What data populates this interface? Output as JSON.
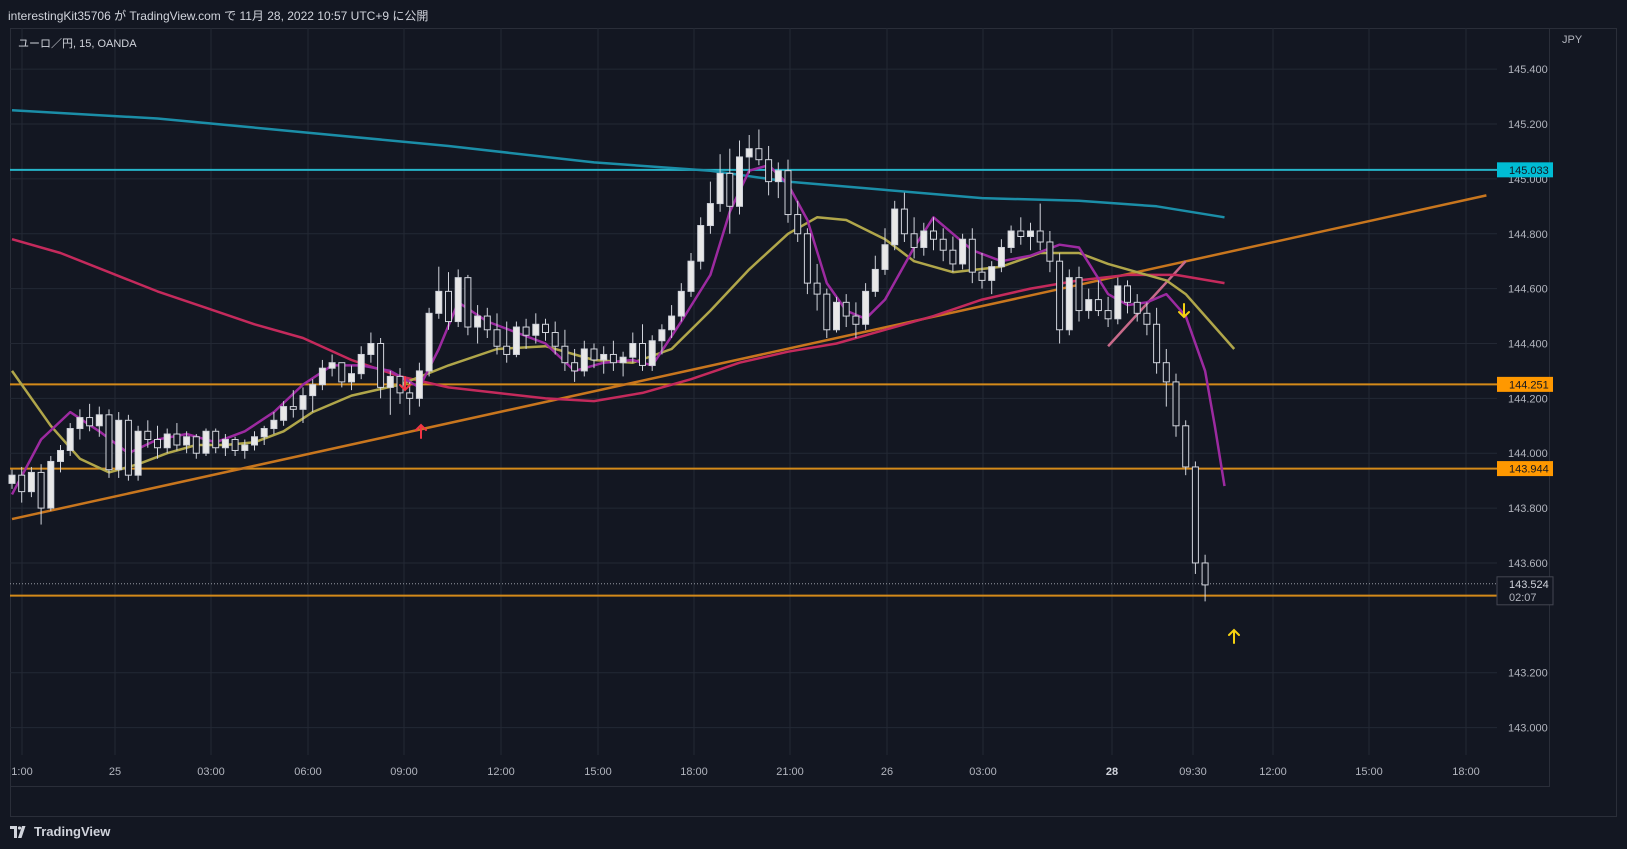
{
  "header": {
    "publish_line": "interestingKit35706 が TradingView.com で 11月 28, 2022 10:57 UTC+9 に公開",
    "symbol_line": "ユーロ／円, 15, OANDA",
    "currency": "JPY"
  },
  "footer": {
    "brand": "TradingView"
  },
  "colors": {
    "background": "#131722",
    "grid": "#232834",
    "up_candle": "#e8e8e8",
    "down_candle": "#e8e8e8",
    "hline": "#d48a1a",
    "trendline": "#c8761e",
    "hline_cyan": "#26b4c8",
    "ma_teal": "#1b8ea8",
    "ma_crimson": "#c42a5c",
    "ma_olive": "#b0a64a",
    "ma_purple": "#9c2aa0",
    "arrow_red": "#f23645",
    "arrow_yellow": "#f5d211",
    "label_orange": "#ff9800",
    "label_cyan": "#00bcd4"
  },
  "chart_data": {
    "type": "candlestick",
    "ylim": [
      142.9,
      145.55
    ],
    "y_ticks": [
      "145.400",
      "145.200",
      "145.000",
      "144.800",
      "144.600",
      "144.400",
      "144.200",
      "144.000",
      "143.800",
      "143.600",
      "143.200",
      "143.000"
    ],
    "x_ticks": [
      "1:00",
      "25",
      "03:00",
      "06:00",
      "09:00",
      "12:00",
      "15:00",
      "18:00",
      "21:00",
      "26",
      "03:00",
      "28",
      "09:30",
      "12:00",
      "15:00",
      "18:00"
    ],
    "bold_x_ticks": [
      "28"
    ],
    "horizontal_levels": [
      {
        "value": 145.033,
        "label": "145.033",
        "style": "cyan"
      },
      {
        "value": 144.251,
        "label": "144.251",
        "style": "orange"
      },
      {
        "value": 143.944,
        "label": "143.944",
        "style": "orange"
      },
      {
        "value": 143.481,
        "label": "143.481",
        "style": "orange"
      }
    ],
    "last_price": {
      "value": 143.524,
      "label": "143.524",
      "countdown": "02:07"
    },
    "trendlines": [
      {
        "from": [
          0,
          143.76
        ],
        "to": [
          152,
          144.94
        ]
      },
      {
        "from": [
          113,
          144.39
        ],
        "to": [
          121,
          144.7
        ]
      }
    ],
    "moving_averages": [
      {
        "color": "ma_teal",
        "points": [
          [
            0,
            145.25
          ],
          [
            15,
            145.22
          ],
          [
            30,
            145.17
          ],
          [
            45,
            145.12
          ],
          [
            60,
            145.06
          ],
          [
            72,
            145.03
          ],
          [
            80,
            144.99
          ],
          [
            90,
            144.96
          ],
          [
            100,
            144.93
          ],
          [
            110,
            144.92
          ],
          [
            118,
            144.9
          ],
          [
            125,
            144.86
          ]
        ]
      },
      {
        "color": "ma_crimson",
        "points": [
          [
            0,
            144.78
          ],
          [
            5,
            144.73
          ],
          [
            10,
            144.66
          ],
          [
            15,
            144.59
          ],
          [
            20,
            144.53
          ],
          [
            25,
            144.47
          ],
          [
            30,
            144.42
          ],
          [
            35,
            144.34
          ],
          [
            40,
            144.28
          ],
          [
            45,
            144.24
          ],
          [
            50,
            144.22
          ],
          [
            55,
            144.2
          ],
          [
            60,
            144.19
          ],
          [
            65,
            144.22
          ],
          [
            70,
            144.27
          ],
          [
            75,
            144.33
          ],
          [
            80,
            144.37
          ],
          [
            85,
            144.4
          ],
          [
            90,
            144.45
          ],
          [
            95,
            144.5
          ],
          [
            100,
            144.56
          ],
          [
            105,
            144.6
          ],
          [
            110,
            144.63
          ],
          [
            115,
            144.65
          ],
          [
            120,
            144.65
          ],
          [
            125,
            144.62
          ]
        ]
      },
      {
        "color": "ma_olive",
        "points": [
          [
            0,
            144.3
          ],
          [
            4,
            144.1
          ],
          [
            7,
            143.98
          ],
          [
            10,
            143.93
          ],
          [
            13,
            143.96
          ],
          [
            16,
            144.0
          ],
          [
            19,
            144.03
          ],
          [
            22,
            144.03
          ],
          [
            25,
            144.04
          ],
          [
            28,
            144.08
          ],
          [
            31,
            144.15
          ],
          [
            35,
            144.21
          ],
          [
            40,
            144.25
          ],
          [
            45,
            144.32
          ],
          [
            50,
            144.38
          ],
          [
            55,
            144.39
          ],
          [
            60,
            144.34
          ],
          [
            64,
            144.33
          ],
          [
            68,
            144.38
          ],
          [
            72,
            144.52
          ],
          [
            76,
            144.67
          ],
          [
            80,
            144.8
          ],
          [
            83,
            144.86
          ],
          [
            86,
            144.85
          ],
          [
            90,
            144.78
          ],
          [
            93,
            144.7
          ],
          [
            97,
            144.66
          ],
          [
            102,
            144.68
          ],
          [
            106,
            144.73
          ],
          [
            110,
            144.73
          ],
          [
            113,
            144.69
          ],
          [
            116,
            144.66
          ],
          [
            119,
            144.63
          ],
          [
            121,
            144.58
          ],
          [
            124,
            144.46
          ],
          [
            126,
            144.38
          ]
        ]
      },
      {
        "color": "ma_purple",
        "points": [
          [
            0,
            143.85
          ],
          [
            3,
            144.05
          ],
          [
            6,
            144.15
          ],
          [
            9,
            144.08
          ],
          [
            12,
            144.0
          ],
          [
            15,
            144.05
          ],
          [
            18,
            144.07
          ],
          [
            21,
            144.04
          ],
          [
            24,
            144.08
          ],
          [
            27,
            144.15
          ],
          [
            30,
            144.25
          ],
          [
            33,
            144.32
          ],
          [
            36,
            144.32
          ],
          [
            39,
            144.3
          ],
          [
            42,
            144.24
          ],
          [
            44,
            144.38
          ],
          [
            46,
            144.55
          ],
          [
            49,
            144.48
          ],
          [
            52,
            144.44
          ],
          [
            55,
            144.4
          ],
          [
            58,
            144.3
          ],
          [
            61,
            144.33
          ],
          [
            64,
            144.34
          ],
          [
            66,
            144.32
          ],
          [
            69,
            144.48
          ],
          [
            72,
            144.65
          ],
          [
            74,
            144.88
          ],
          [
            76,
            145.03
          ],
          [
            78,
            145.05
          ],
          [
            80,
            144.98
          ],
          [
            82,
            144.85
          ],
          [
            84,
            144.62
          ],
          [
            86,
            144.52
          ],
          [
            88,
            144.49
          ],
          [
            90,
            144.56
          ],
          [
            93,
            144.75
          ],
          [
            95,
            144.86
          ],
          [
            97,
            144.8
          ],
          [
            99,
            144.74
          ],
          [
            102,
            144.7
          ],
          [
            105,
            144.72
          ],
          [
            108,
            144.76
          ],
          [
            110,
            144.75
          ],
          [
            113,
            144.58
          ],
          [
            115,
            144.54
          ],
          [
            117,
            144.55
          ],
          [
            119,
            144.58
          ],
          [
            121,
            144.5
          ],
          [
            123,
            144.3
          ],
          [
            124,
            144.1
          ],
          [
            125,
            143.88
          ]
        ]
      }
    ],
    "candles": [
      [
        143.89,
        143.94,
        143.87,
        143.92
      ],
      [
        143.92,
        143.95,
        143.82,
        143.86
      ],
      [
        143.86,
        143.95,
        143.84,
        143.93
      ],
      [
        143.93,
        143.96,
        143.74,
        143.8
      ],
      [
        143.8,
        143.99,
        143.79,
        143.97
      ],
      [
        143.97,
        144.03,
        143.93,
        144.01
      ],
      [
        144.01,
        144.11,
        143.99,
        144.09
      ],
      [
        144.09,
        144.16,
        144.05,
        144.13
      ],
      [
        144.13,
        144.18,
        144.08,
        144.1
      ],
      [
        144.1,
        144.17,
        144.06,
        144.14
      ],
      [
        144.14,
        144.16,
        143.91,
        143.94
      ],
      [
        143.94,
        144.15,
        143.91,
        144.12
      ],
      [
        144.12,
        144.14,
        143.9,
        143.92
      ],
      [
        143.92,
        144.1,
        143.9,
        144.08
      ],
      [
        144.08,
        144.12,
        144.02,
        144.05
      ],
      [
        144.05,
        144.1,
        143.98,
        144.02
      ],
      [
        144.02,
        144.09,
        144.0,
        144.07
      ],
      [
        144.07,
        144.11,
        144.01,
        144.03
      ],
      [
        144.03,
        144.08,
        144.0,
        144.06
      ],
      [
        144.06,
        144.07,
        143.98,
        144.0
      ],
      [
        144.0,
        144.09,
        143.99,
        144.08
      ],
      [
        144.08,
        144.09,
        144.0,
        144.02
      ],
      [
        144.02,
        144.07,
        143.99,
        144.05
      ],
      [
        144.05,
        144.06,
        143.99,
        144.01
      ],
      [
        144.01,
        144.05,
        143.98,
        144.03
      ],
      [
        144.03,
        144.08,
        144.01,
        144.06
      ],
      [
        144.06,
        144.1,
        144.03,
        144.09
      ],
      [
        144.09,
        144.15,
        144.07,
        144.12
      ],
      [
        144.12,
        144.19,
        144.1,
        144.17
      ],
      [
        144.17,
        144.23,
        144.13,
        144.16
      ],
      [
        144.16,
        144.24,
        144.11,
        144.21
      ],
      [
        144.21,
        144.27,
        144.15,
        144.25
      ],
      [
        144.25,
        144.34,
        144.23,
        144.31
      ],
      [
        144.31,
        144.36,
        144.28,
        144.33
      ],
      [
        144.33,
        144.33,
        144.24,
        144.26
      ],
      [
        144.26,
        144.32,
        144.23,
        144.29
      ],
      [
        144.29,
        144.39,
        144.27,
        144.36
      ],
      [
        144.36,
        144.44,
        144.33,
        144.4
      ],
      [
        144.4,
        144.42,
        144.2,
        144.24
      ],
      [
        144.24,
        144.3,
        144.14,
        144.28
      ],
      [
        144.28,
        144.31,
        144.18,
        144.22
      ],
      [
        144.22,
        144.26,
        144.14,
        144.2
      ],
      [
        144.2,
        144.33,
        144.17,
        144.3
      ],
      [
        144.3,
        144.53,
        144.28,
        144.51
      ],
      [
        144.51,
        144.68,
        144.49,
        144.59
      ],
      [
        144.59,
        144.66,
        144.45,
        144.48
      ],
      [
        144.48,
        144.67,
        144.46,
        144.64
      ],
      [
        144.64,
        144.65,
        144.43,
        144.46
      ],
      [
        144.46,
        144.54,
        144.4,
        144.5
      ],
      [
        144.5,
        144.53,
        144.42,
        144.45
      ],
      [
        144.45,
        144.51,
        144.36,
        144.39
      ],
      [
        144.39,
        144.48,
        144.33,
        144.36
      ],
      [
        144.36,
        144.48,
        144.35,
        144.46
      ],
      [
        144.46,
        144.49,
        144.38,
        144.43
      ],
      [
        144.43,
        144.51,
        144.4,
        144.47
      ],
      [
        144.47,
        144.49,
        144.41,
        144.44
      ],
      [
        144.44,
        144.48,
        144.36,
        144.39
      ],
      [
        144.39,
        144.45,
        144.3,
        144.33
      ],
      [
        144.33,
        144.38,
        144.26,
        144.3
      ],
      [
        144.3,
        144.41,
        144.28,
        144.38
      ],
      [
        144.38,
        144.4,
        144.31,
        144.34
      ],
      [
        144.34,
        144.39,
        144.29,
        144.36
      ],
      [
        144.36,
        144.41,
        144.3,
        144.33
      ],
      [
        144.33,
        144.37,
        144.28,
        144.35
      ],
      [
        144.35,
        144.44,
        144.33,
        144.4
      ],
      [
        144.4,
        144.47,
        144.3,
        144.32
      ],
      [
        144.32,
        144.43,
        144.3,
        144.41
      ],
      [
        144.41,
        144.47,
        144.36,
        144.45
      ],
      [
        144.45,
        144.54,
        144.42,
        144.5
      ],
      [
        144.5,
        144.62,
        144.48,
        144.59
      ],
      [
        144.59,
        144.73,
        144.57,
        144.7
      ],
      [
        144.7,
        144.86,
        144.67,
        144.83
      ],
      [
        144.83,
        144.99,
        144.8,
        144.91
      ],
      [
        144.91,
        145.09,
        144.88,
        145.02
      ],
      [
        145.02,
        145.11,
        144.8,
        144.9
      ],
      [
        144.9,
        145.14,
        144.87,
        145.08
      ],
      [
        145.08,
        145.16,
        145.02,
        145.11
      ],
      [
        145.11,
        145.18,
        145.05,
        145.07
      ],
      [
        145.07,
        145.12,
        144.94,
        144.99
      ],
      [
        144.99,
        145.06,
        144.93,
        145.03
      ],
      [
        145.03,
        145.07,
        144.84,
        144.87
      ],
      [
        144.87,
        144.92,
        144.77,
        144.8
      ],
      [
        144.8,
        144.82,
        144.58,
        144.62
      ],
      [
        144.62,
        144.69,
        144.52,
        144.58
      ],
      [
        144.58,
        144.6,
        144.42,
        144.45
      ],
      [
        144.45,
        144.57,
        144.44,
        144.55
      ],
      [
        144.55,
        144.58,
        144.46,
        144.5
      ],
      [
        144.5,
        144.55,
        144.42,
        144.47
      ],
      [
        144.47,
        144.62,
        144.45,
        144.59
      ],
      [
        144.59,
        144.72,
        144.57,
        144.67
      ],
      [
        144.67,
        144.82,
        144.65,
        144.76
      ],
      [
        144.76,
        144.92,
        144.74,
        144.89
      ],
      [
        144.89,
        144.95,
        144.77,
        144.8
      ],
      [
        144.8,
        144.86,
        144.71,
        144.75
      ],
      [
        144.75,
        144.84,
        144.72,
        144.81
      ],
      [
        144.81,
        144.86,
        144.74,
        144.78
      ],
      [
        144.78,
        144.82,
        144.7,
        144.74
      ],
      [
        144.74,
        144.79,
        144.66,
        144.69
      ],
      [
        144.69,
        144.8,
        144.67,
        144.78
      ],
      [
        144.78,
        144.82,
        144.62,
        144.66
      ],
      [
        144.66,
        144.73,
        144.6,
        144.63
      ],
      [
        144.63,
        144.7,
        144.58,
        144.68
      ],
      [
        144.68,
        144.78,
        144.66,
        144.75
      ],
      [
        144.75,
        144.83,
        144.73,
        144.81
      ],
      [
        144.81,
        144.86,
        144.76,
        144.79
      ],
      [
        144.79,
        144.84,
        144.74,
        144.81
      ],
      [
        144.81,
        144.91,
        144.74,
        144.77
      ],
      [
        144.77,
        144.81,
        144.66,
        144.7
      ],
      [
        144.7,
        144.73,
        144.4,
        144.45
      ],
      [
        144.45,
        144.67,
        144.43,
        144.64
      ],
      [
        144.64,
        144.68,
        144.48,
        144.52
      ],
      [
        144.52,
        144.6,
        144.49,
        144.56
      ],
      [
        144.56,
        144.63,
        144.5,
        144.52
      ],
      [
        144.52,
        144.57,
        144.46,
        144.49
      ],
      [
        144.49,
        144.64,
        144.47,
        144.61
      ],
      [
        144.61,
        144.63,
        144.51,
        144.55
      ],
      [
        144.55,
        144.58,
        144.48,
        144.51
      ],
      [
        144.51,
        144.55,
        144.43,
        144.47
      ],
      [
        144.47,
        144.53,
        144.29,
        144.33
      ],
      [
        144.33,
        144.38,
        144.17,
        144.26
      ],
      [
        144.26,
        144.29,
        144.06,
        144.1
      ],
      [
        144.1,
        144.12,
        143.92,
        143.95
      ],
      [
        143.95,
        143.97,
        143.56,
        143.6
      ],
      [
        143.6,
        143.63,
        143.46,
        143.52
      ]
    ]
  }
}
